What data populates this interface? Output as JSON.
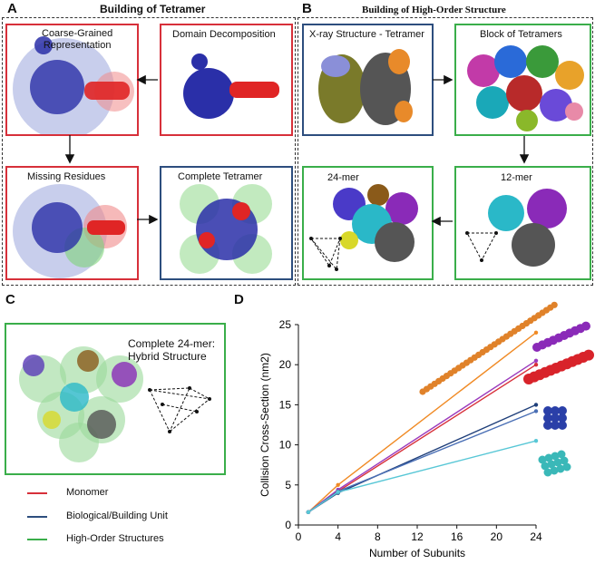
{
  "panel_a": {
    "letter": "A",
    "header": "Building of Tetramer",
    "boxes": {
      "coarse": "Coarse-Grained\nRepresentation",
      "domain": "Domain Decomposition",
      "missing": "Missing Residues",
      "complete": "Complete Tetramer"
    }
  },
  "panel_b": {
    "letter": "B",
    "header": "Building of High-Order Structure",
    "boxes": {
      "xray": "X-ray Structure - Tetramer",
      "block": "Block of Tetramers",
      "mer24": "24-mer",
      "mer12": "12-mer"
    }
  },
  "panel_c": {
    "letter": "C",
    "box_title": "Complete 24-mer:\nHybrid Structure",
    "legend": [
      {
        "label": "Monomer",
        "color": "#d7303a"
      },
      {
        "label": "Biological/Building Unit",
        "color": "#2d4e7e"
      },
      {
        "label": "High-Order Structures",
        "color": "#3aae4a"
      }
    ]
  },
  "panel_d": {
    "letter": "D",
    "chart_data": {
      "type": "line",
      "xlabel": "Number of Subunits",
      "ylabel": "Collision Cross-Section (nm2)",
      "xlim": [
        0,
        24
      ],
      "ylim": [
        0,
        25
      ],
      "x_ticks": [
        0,
        4,
        8,
        12,
        16,
        20,
        24
      ],
      "y_ticks": [
        0,
        5,
        10,
        15,
        20,
        25
      ],
      "series": [
        {
          "name": "orange",
          "color": "#f08a24",
          "x": [
            1,
            4,
            24
          ],
          "y": [
            1.6,
            5.0,
            24.0
          ]
        },
        {
          "name": "purple",
          "color": "#9b3bbd",
          "x": [
            1,
            4,
            24
          ],
          "y": [
            1.6,
            4.4,
            20.5
          ]
        },
        {
          "name": "red",
          "color": "#d7303a",
          "x": [
            1,
            4,
            24
          ],
          "y": [
            1.6,
            4.2,
            20.0
          ]
        },
        {
          "name": "navy",
          "color": "#1f3f7a",
          "x": [
            1,
            4,
            24
          ],
          "y": [
            1.6,
            4.0,
            15.0
          ]
        },
        {
          "name": "blue",
          "color": "#4a6fb5",
          "x": [
            1,
            4,
            24
          ],
          "y": [
            1.6,
            4.2,
            14.2
          ]
        },
        {
          "name": "cyan",
          "color": "#58c7d6",
          "x": [
            1,
            4,
            24
          ],
          "y": [
            1.6,
            4.1,
            10.5
          ]
        }
      ]
    }
  }
}
